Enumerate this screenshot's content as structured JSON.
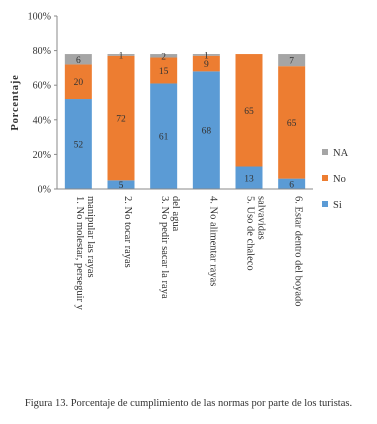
{
  "caption": "Figura 13. Porcentaje de cumplimiento de las normas por parte de los turistas.",
  "chart_data": {
    "type": "stacked-bar-100",
    "ylabel": "Porcentaje",
    "xlabel": "",
    "ylim": [
      0,
      100
    ],
    "yticks": [
      "0%",
      "20%",
      "40%",
      "60%",
      "80%",
      "100%"
    ],
    "categories": [
      [
        "1.  No molestar, perseguir y",
        "manipular las rayas"
      ],
      [
        "2.  No tocar rayas"
      ],
      [
        "3.  No pedir sacar la raya",
        "del agua"
      ],
      [
        "4.  No alimentar rayas"
      ],
      [
        "5.  Uso de chaleco",
        "salvavidas"
      ],
      [
        "6.  Estar dentro del boyado"
      ]
    ],
    "series": [
      {
        "name": "Si",
        "color": "#5b9bd5",
        "values": [
          52,
          5,
          61,
          68,
          13,
          6
        ]
      },
      {
        "name": "No",
        "color": "#ed7d31",
        "values": [
          20,
          72,
          15,
          9,
          65,
          65
        ]
      },
      {
        "name": "NA",
        "color": "#a5a5a5",
        "values": [
          6,
          1,
          2,
          1,
          0,
          7
        ]
      }
    ],
    "legend_position": "right",
    "legend_order": [
      "NA",
      "No",
      "Si"
    ],
    "grid": false
  }
}
